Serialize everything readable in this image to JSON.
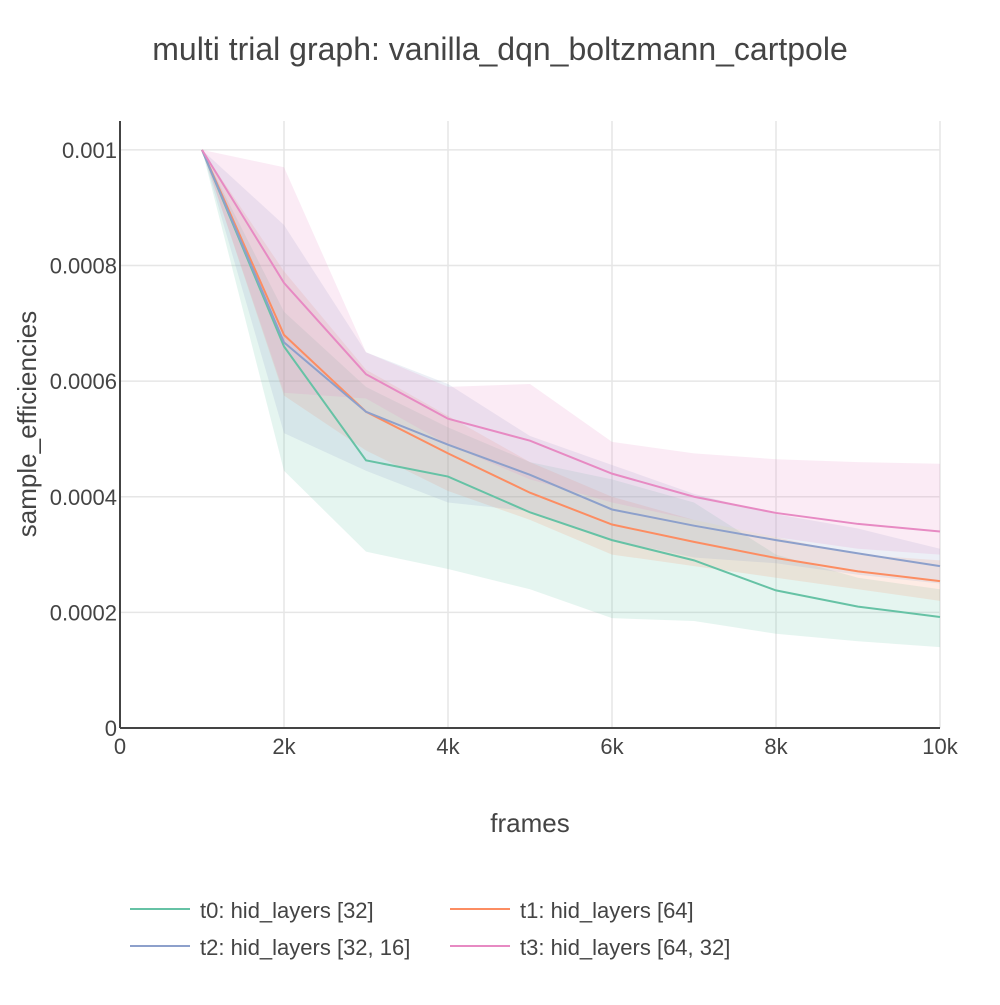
{
  "chart_data": {
    "type": "line",
    "title": "multi trial graph: vanilla_dqn_boltzmann_cartpole",
    "xlabel": "frames",
    "ylabel": "sample_efficiencies",
    "xlim": [
      0,
      10000
    ],
    "ylim": [
      0,
      0.00105
    ],
    "x_ticks": [
      {
        "value": 0,
        "label": "0"
      },
      {
        "value": 2000,
        "label": "2k"
      },
      {
        "value": 4000,
        "label": "4k"
      },
      {
        "value": 6000,
        "label": "6k"
      },
      {
        "value": 8000,
        "label": "8k"
      },
      {
        "value": 10000,
        "label": "10k"
      }
    ],
    "y_ticks": [
      {
        "value": 0,
        "label": "0"
      },
      {
        "value": 0.0002,
        "label": "0.0002"
      },
      {
        "value": 0.0004,
        "label": "0.0004"
      },
      {
        "value": 0.0006,
        "label": "0.0006"
      },
      {
        "value": 0.0008,
        "label": "0.0008"
      },
      {
        "value": 0.001,
        "label": "0.001"
      }
    ],
    "grid": true,
    "legend_position": "bottom",
    "x": [
      1000,
      2000,
      3000,
      4000,
      5000,
      6000,
      7000,
      8000,
      9000,
      10000
    ],
    "series": [
      {
        "name": "t0: hid_layers [32]",
        "color": "#66c2a5",
        "band_color": "rgba(102,194,165,0.17)",
        "values": [
          0.001,
          0.00066,
          0.000463,
          0.000435,
          0.000373,
          0.000325,
          0.00029,
          0.000238,
          0.00021,
          0.000192
        ],
        "upper": [
          0.001,
          0.00072,
          0.00059,
          0.00052,
          0.00046,
          0.00043,
          0.00039,
          0.0003,
          0.00026,
          0.00024
        ],
        "lower": [
          0.001,
          0.000445,
          0.000305,
          0.000275,
          0.00024,
          0.00019,
          0.000185,
          0.000163,
          0.00015,
          0.00014
        ]
      },
      {
        "name": "t1: hid_layers [64]",
        "color": "#fc8d62",
        "band_color": "rgba(252,141,98,0.17)",
        "values": [
          0.001,
          0.00068,
          0.000547,
          0.000475,
          0.000407,
          0.000352,
          0.000322,
          0.000294,
          0.000271,
          0.000254
        ],
        "upper": [
          0.001,
          0.00079,
          0.00062,
          0.00054,
          0.00046,
          0.0004,
          0.00036,
          0.00033,
          0.0003,
          0.00029
        ],
        "lower": [
          0.001,
          0.000575,
          0.00048,
          0.00041,
          0.00036,
          0.0003,
          0.00028,
          0.00026,
          0.00024,
          0.00022
        ]
      },
      {
        "name": "t2: hid_layers [32, 16]",
        "color": "#8da0cb",
        "band_color": "rgba(141,160,203,0.17)",
        "values": [
          0.001,
          0.000667,
          0.000547,
          0.00049,
          0.000438,
          0.000378,
          0.00035,
          0.000325,
          0.000302,
          0.00028
        ],
        "upper": [
          0.001,
          0.00087,
          0.00065,
          0.000595,
          0.000505,
          0.000455,
          0.000405,
          0.00037,
          0.000345,
          0.00031
        ],
        "lower": [
          0.001,
          0.00051,
          0.000445,
          0.00039,
          0.000375,
          0.000325,
          0.000295,
          0.000285,
          0.000265,
          0.00025
        ]
      },
      {
        "name": "t3: hid_layers [64, 32]",
        "color": "#e78ac3",
        "band_color": "rgba(231,138,195,0.17)",
        "values": [
          0.001,
          0.00077,
          0.000612,
          0.000535,
          0.000497,
          0.00044,
          0.0004,
          0.000372,
          0.000353,
          0.00034
        ],
        "upper": [
          0.001,
          0.00097,
          0.00065,
          0.00059,
          0.000595,
          0.000495,
          0.000475,
          0.000465,
          0.00046,
          0.000457
        ],
        "lower": [
          0.001,
          0.00058,
          0.00057,
          0.00049,
          0.00043,
          0.00039,
          0.00036,
          0.00033,
          0.00031,
          0.0003
        ]
      }
    ]
  }
}
